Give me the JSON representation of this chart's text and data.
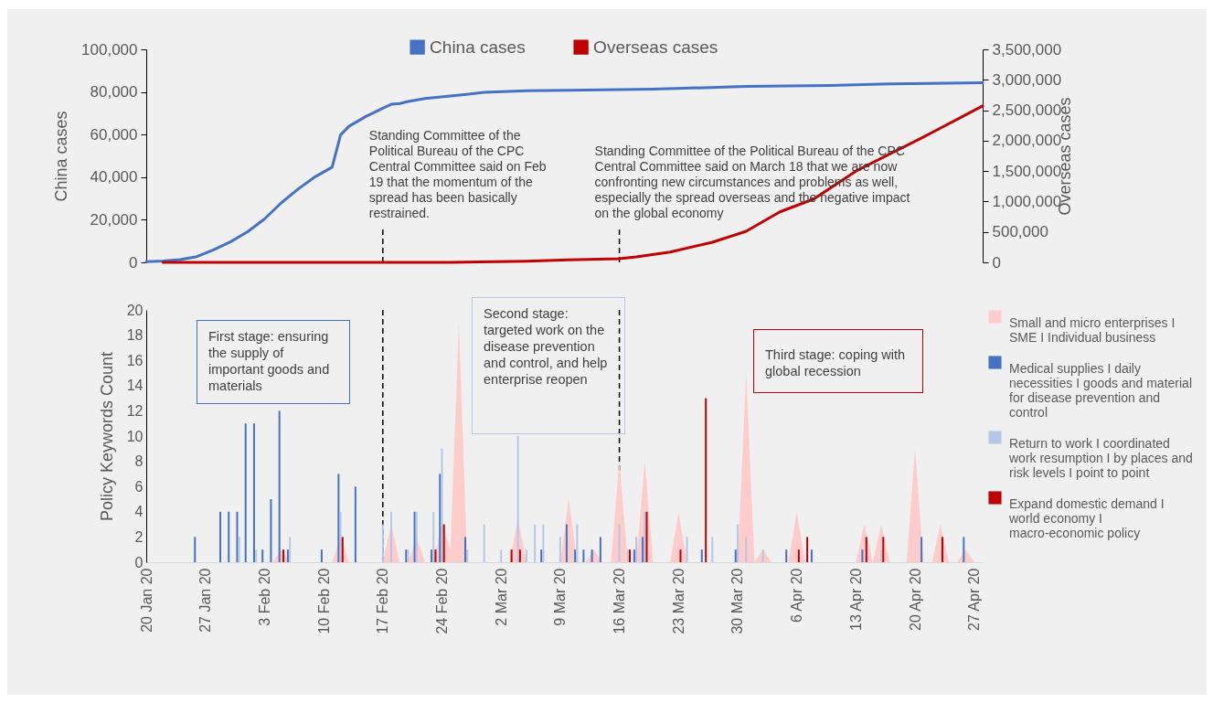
{
  "chart_data": [
    {
      "type": "line",
      "legend": "top",
      "tick_labels": "y",
      "ylabel": "China cases",
      "y2label": "Overseas cases",
      "xlim": [
        "--01-20",
        "--04-28"
      ],
      "ylim": [
        0,
        100000
      ],
      "yticks": [
        0,
        {
          "value": 20000,
          "label": "20,000"
        },
        {
          "value": 40000,
          "label": "40,000"
        },
        {
          "value": 60000,
          "label": "60,000"
        },
        {
          "value": 80000,
          "label": "80,000"
        },
        {
          "value": 100000,
          "label": "100,000"
        }
      ],
      "y2lim": [
        0,
        3500000
      ],
      "y2ticks": [
        0,
        {
          "value": 500000,
          "label": "500,000"
        },
        {
          "value": 1000000,
          "label": "1,000,000"
        },
        {
          "value": 1500000,
          "label": "1,500,000"
        },
        {
          "value": 2000000,
          "label": "2,000,000"
        },
        {
          "value": 2500000,
          "label": "2,500,000"
        },
        {
          "value": 3000000,
          "label": "3,000,000"
        },
        {
          "value": 3500000,
          "label": "3,500,000"
        }
      ],
      "series": [
        {
          "name": "China cases",
          "color": "#4472c4",
          "x": [
            "--01-20",
            "--01-22",
            "--01-24",
            "--01-26",
            "--01-28",
            "--01-30",
            "--02-01",
            "--02-03",
            "--02-05",
            "--02-07",
            "--02-09",
            "--02-11",
            "--02-12",
            "--02-13",
            "--02-15",
            "--02-17",
            "--02-18",
            "--02-19",
            "--02-20",
            "--02-22",
            "--02-25",
            "--02-29",
            "--03-05",
            "--03-10",
            "--03-20",
            "--03-31",
            "--04-10",
            "--04-17",
            "--04-28"
          ],
          "values": [
            300,
            600,
            1300,
            2700,
            6000,
            9700,
            14400,
            20400,
            28000,
            34500,
            40200,
            44700,
            59800,
            63900,
            68500,
            72400,
            74200,
            74600,
            75500,
            76900,
            78100,
            79800,
            80600,
            80800,
            81300,
            82600,
            83000,
            83800,
            84300
          ]
        },
        {
          "name": "Overseas cases",
          "color": "#c00000",
          "axis": "y2",
          "x": [
            "--01-22",
            "--02-25",
            "--03-05",
            "--03-10",
            "--03-16",
            "--03-18",
            "--03-22",
            "--03-27",
            "--03-31",
            "--04-04",
            "--04-08",
            "--04-13",
            "--04-17",
            "--04-21",
            "--04-28"
          ],
          "values": [
            0,
            0,
            20000,
            40000,
            60000,
            90000,
            170000,
            330000,
            510000,
            830000,
            1040000,
            1500000,
            1780000,
            2060000,
            2570000
          ]
        }
      ],
      "ref_lines": [
        {
          "axis": "x",
          "value": "--02-17",
          "line_style": "dashed",
          "color": "#000000"
        },
        {
          "axis": "x",
          "value": "--03-16",
          "line_style": "dashed",
          "color": "#000000"
        }
      ],
      "annotations": [
        "Standing Committee of the Political Bureau of the CPC Central Committee said on Feb 19 that the momentum of the spread has been basically restrained.",
        "Standing Committee of the Political Bureau of the CPC Central Committee said on March 18 that we are now confronting new circumstances and problems as well, especially the spread overseas and the negative impact on the global economy"
      ]
    },
    {
      "type": "bar",
      "legend": "right",
      "ylabel": "Policy Keywords Count",
      "xlim": [
        "--01-20",
        "--04-28"
      ],
      "xticks": [
        {
          "value": "--01-20",
          "label": "20 Jan 20"
        },
        {
          "value": "--01-27",
          "label": "27 Jan 20"
        },
        {
          "value": "--02-03",
          "label": "3 Feb 20"
        },
        {
          "value": "--02-10",
          "label": "10 Feb 20"
        },
        {
          "value": "--02-17",
          "label": "17 Feb 20"
        },
        {
          "value": "--02-24",
          "label": "24 Feb 20"
        },
        {
          "value": "--03-02",
          "label": "2 Mar 20"
        },
        {
          "value": "--03-09",
          "label": "9 Mar 20"
        },
        {
          "value": "--03-16",
          "label": "16 Mar 20"
        },
        {
          "value": "--03-23",
          "label": "23 Mar 20"
        },
        {
          "value": "--03-30",
          "label": "30 Mar 20"
        },
        {
          "value": "--04-06",
          "label": "6 Apr 20"
        },
        {
          "value": "--04-13",
          "label": "13 Apr 20"
        },
        {
          "value": "--04-20",
          "label": "20 Apr 20"
        },
        {
          "value": "--04-27",
          "label": "27 Apr 20"
        }
      ],
      "ylim": [
        0,
        20
      ],
      "yticks": [
        0,
        2,
        4,
        6,
        8,
        10,
        12,
        14,
        16,
        18,
        20
      ],
      "series": [
        {
          "name": "Small and micro enterprises I SME I Individual business",
          "type": "area",
          "color": "#ffcccc",
          "x": [
            "--02-04",
            "--02-05",
            "--02-06",
            "--02-11",
            "--02-12",
            "--02-13",
            "--02-17",
            "--02-18",
            "--02-19",
            "--02-20",
            "--02-21",
            "--02-22",
            "--02-23",
            "--02-24",
            "--02-25",
            "--02-26",
            "--02-27",
            "--03-03",
            "--03-04",
            "--03-05",
            "--03-09",
            "--03-10",
            "--03-11",
            "--03-12",
            "--03-13",
            "--03-14",
            "--03-15",
            "--03-16",
            "--03-17",
            "--03-18",
            "--03-19",
            "--03-20",
            "--03-22",
            "--03-23",
            "--03-24",
            "--03-30",
            "--03-31",
            "--04-01",
            "--04-02",
            "--04-03",
            "--04-05",
            "--04-06",
            "--04-07",
            "--04-13",
            "--04-14",
            "--04-15",
            "--04-16",
            "--04-17",
            "--04-19",
            "--04-20",
            "--04-21",
            "--04-22",
            "--04-23",
            "--04-24",
            "--04-25",
            "--04-26",
            "--04-27"
          ],
          "values": [
            0,
            1,
            0,
            0,
            2,
            0,
            0,
            3,
            0,
            0,
            2,
            0,
            0,
            3,
            1,
            19,
            0,
            0,
            3.5,
            0,
            0,
            5,
            0,
            0,
            1,
            0,
            0,
            8,
            0,
            0,
            8,
            0,
            0,
            4,
            0,
            0,
            15,
            0,
            1,
            0,
            0,
            4,
            0,
            0,
            3,
            0,
            3,
            0,
            0,
            9,
            0,
            0,
            3,
            0,
            0,
            1,
            0
          ]
        },
        {
          "name": "Medical supplies I daily necessities I goods and material for disease prevention and control",
          "color": "#4472c4",
          "x": [
            "--01-26",
            "--01-29",
            "--01-30",
            "--01-31",
            "--02-01",
            "--02-02",
            "--02-03",
            "--02-04",
            "--02-05",
            "--02-06",
            "--02-10",
            "--02-12",
            "--02-14",
            "--02-20",
            "--02-21",
            "--02-23",
            "--02-24",
            "--02-27",
            "--03-07",
            "--03-10",
            "--03-11",
            "--03-12",
            "--03-13",
            "--03-14",
            "--03-18",
            "--03-19",
            "--03-26",
            "--03-30",
            "--04-05",
            "--04-08",
            "--04-14",
            "--04-21",
            "--04-26"
          ],
          "values": [
            2,
            4,
            4,
            4,
            11,
            11,
            1,
            5,
            12,
            1,
            1,
            7,
            6,
            1,
            4,
            1,
            7,
            2,
            1,
            3,
            1,
            1,
            1,
            2,
            1,
            2,
            1,
            1,
            1,
            1,
            1,
            2,
            2
          ]
        },
        {
          "name": "Return to work I coordinated work resumption I by places and risk levels I point to point",
          "color": "#b4c7e7",
          "x": [
            "--01-31",
            "--02-02",
            "--02-06",
            "--02-12",
            "--02-17",
            "--02-18",
            "--02-20",
            "--02-21",
            "--02-23",
            "--02-24",
            "--02-27",
            "--02-29",
            "--03-02",
            "--03-04",
            "--03-05",
            "--03-06",
            "--03-07",
            "--03-09",
            "--03-11",
            "--03-16",
            "--03-17",
            "--03-18",
            "--03-19",
            "--03-24",
            "--03-27",
            "--03-30",
            "--03-31",
            "--04-02",
            "--04-16"
          ],
          "values": [
            2,
            1,
            2,
            4,
            3,
            4,
            1,
            4,
            4,
            9,
            1,
            3,
            1,
            10,
            1,
            3,
            3,
            2,
            3,
            3,
            1,
            2,
            4,
            2,
            2,
            3,
            2,
            1,
            1
          ]
        },
        {
          "name": "Expand domestic demand I world economy I macro-economic policy",
          "color": "#c00000",
          "x": [
            "--02-05",
            "--02-12",
            "--02-23",
            "--02-24",
            "--03-03",
            "--03-04",
            "--03-17",
            "--03-19",
            "--03-23",
            "--03-26",
            "--04-06",
            "--04-07",
            "--04-14",
            "--04-16",
            "--04-23"
          ],
          "values": [
            1,
            2,
            1,
            3,
            1,
            1,
            1,
            4,
            1,
            13,
            1,
            2,
            2,
            2,
            2
          ]
        }
      ],
      "ref_lines": [
        {
          "axis": "x",
          "value": "--02-17",
          "line_style": "dashed",
          "color": "#000000"
        },
        {
          "axis": "x",
          "value": "--03-16",
          "line_style": "dashed",
          "color": "#000000"
        }
      ],
      "annotations": [
        "First stage: ensuring the supply of important goods and materials",
        "Second stage: targeted work on the disease prevention and control, and help enterprise reopen",
        "Third stage: coping with global recession"
      ]
    }
  ]
}
